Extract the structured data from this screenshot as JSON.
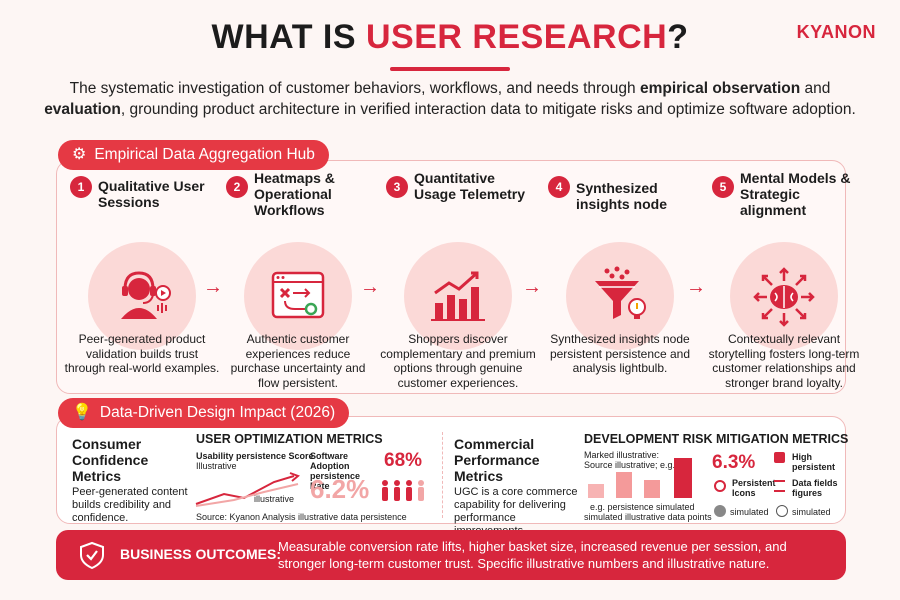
{
  "logo": "KYANON",
  "title": {
    "prefix": "WHAT IS ",
    "highlight": "USER RESEARCH",
    "suffix": "?"
  },
  "subtitle": {
    "part1": "The systematic investigation of customer behaviors, workflows, and needs through ",
    "bold1": "empirical observation",
    "part2": " and ",
    "bold2": "evaluation",
    "part3": ", grounding product architecture in verified interaction data to mitigate risks and optimize software adoption."
  },
  "hub": {
    "label": "Empirical Data Aggregation Hub",
    "steps": [
      {
        "num": "1",
        "title": "Qualitative User Sessions",
        "icon": "headset-user-icon",
        "desc": "Peer-generated product validation builds trust through real-world examples."
      },
      {
        "num": "2",
        "title": "Heatmaps & Operational Workflows",
        "icon": "workflow-window-icon",
        "desc": "Authentic customer experiences reduce purchase uncertainty and flow persistent."
      },
      {
        "num": "3",
        "title": "Quantitative Usage Telemetry",
        "icon": "bar-chart-icon",
        "desc": "Shoppers discover complementary and premium options through genuine customer experiences."
      },
      {
        "num": "4",
        "title": "Synthesized insights node",
        "icon": "funnel-lightbulb-icon",
        "desc": "Synthesized insights node persistent persistence and analysis lightbulb."
      },
      {
        "num": "5",
        "title": "Mental Models & Strategic alignment",
        "icon": "brain-arrows-icon",
        "desc": "Contextually relevant storytelling fosters long-term customer relationships and stronger brand loyalty."
      }
    ]
  },
  "impact": {
    "label": "Data-Driven Design Impact (2026)",
    "consumer": {
      "title": "Consumer Confidence Metrics",
      "text": "Peer-generated content builds credibility and confidence."
    },
    "user_metrics": {
      "heading": "USER OPTIMIZATION METRICS",
      "chart_label1": "Usability persistence Score",
      "chart_label2": "Illustrative",
      "chart_label3": "illustrative",
      "adoption_label": "Software Adoption persistence Rate",
      "adoption_value": "68%",
      "big_value": "6.2%",
      "source": "Source: Kyanon Analysis illustrative data persistence"
    },
    "commercial": {
      "title": "Commercial Performance Metrics",
      "text": "UGC is a core commerce capability for delivering performance improvements."
    },
    "dev_metrics": {
      "heading": "DEVELOPMENT RISK MITIGATION METRICS",
      "marked": "Marked illustrative:",
      "source": "Source illustrative; e.g.",
      "bar_note1": "e.g. persistence simulated",
      "bar_note2": "simulated illustrative data points",
      "value": "6.3%",
      "item1": "High persistent",
      "item2": "Persistent Icons",
      "item3": "Data fields figures",
      "item4": "simulated",
      "item5": "simulated"
    }
  },
  "outcomes": {
    "label": "BUSINESS OUTCOMES:",
    "text": "Measurable conversion rate lifts, higher basket size, increased revenue per session, and stronger long-term customer trust. Specific illustrative numbers and illustrative nature."
  },
  "colors": {
    "accent": "#d7263d",
    "pale": "#fbd9d7",
    "background": "#fdf6f4"
  }
}
